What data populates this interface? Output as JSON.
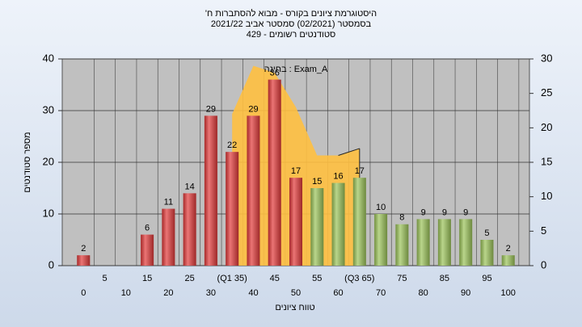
{
  "chart_data": {
    "type": "bar",
    "title": [
      "היסטוגרמת ציונים בקורס - מבוא להסתברות ח'",
      "בסמסטר  (02/2021)  סמסטר אביב 2021/22",
      "סטודנטים רשומים - 429"
    ],
    "x_label": "טווח ציונים",
    "y_label": "מספר סטודנטים",
    "categories": [
      "0",
      "5",
      "10",
      "15",
      "20",
      "25",
      "30",
      "(Q1 35)",
      "40",
      "45",
      "50",
      "55",
      "60",
      "(Q3 65)",
      "70",
      "75",
      "80",
      "85",
      "90",
      "95",
      "100"
    ],
    "values": [
      2,
      null,
      null,
      6,
      11,
      14,
      29,
      22,
      29,
      36,
      17,
      15,
      16,
      17,
      10,
      8,
      9,
      9,
      9,
      5,
      2
    ],
    "colors": [
      "#e23a3a",
      "#e23a3a",
      "#e23a3a",
      "#e23a3a",
      "#e23a3a",
      "#e23a3a",
      "#e23a3a",
      "#e23a3a",
      "#e23a3a",
      "#e23a3a",
      "#e23a3a",
      "#9cc45a",
      "#9cc45a",
      "#9cc45a",
      "#9cc45a",
      "#9cc45a",
      "#9cc45a",
      "#9cc45a",
      "#9cc45a",
      "#9cc45a",
      "#9cc45a"
    ],
    "area": {
      "name": "בחינה : Exam_A",
      "color": "#ffc040",
      "axis": "y2",
      "values": [
        null,
        null,
        null,
        null,
        null,
        null,
        null,
        22,
        29,
        28,
        23,
        16,
        16,
        17,
        null,
        null,
        null,
        null,
        null,
        null,
        null
      ]
    },
    "ylim": [
      0,
      40
    ],
    "yticks": [
      0,
      10,
      20,
      30,
      40
    ],
    "y2lim": [
      0,
      30
    ],
    "y2ticks": [
      0,
      5,
      10,
      15,
      20,
      25,
      30
    ],
    "grid": true
  }
}
